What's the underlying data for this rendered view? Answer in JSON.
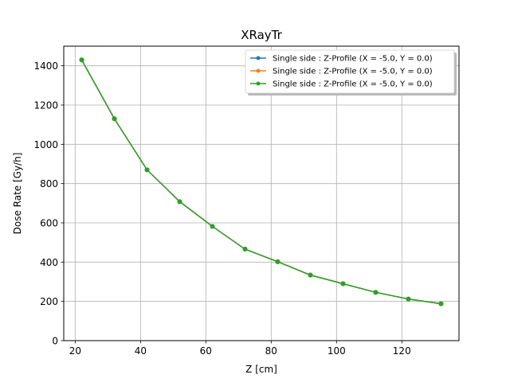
{
  "chart_data": {
    "type": "line",
    "title": "XRayTr",
    "xlabel": "Z [cm]",
    "ylabel": "Dose Rate [Gy/h]",
    "xlim": [
      16.5,
      137.5
    ],
    "ylim": [
      0,
      1500
    ],
    "xticks": [
      20,
      40,
      60,
      80,
      100,
      120
    ],
    "yticks": [
      0,
      200,
      400,
      600,
      800,
      1000,
      1200,
      1400
    ],
    "grid": true,
    "legend_position": "top-right",
    "x": [
      22,
      32,
      42,
      52,
      62,
      72,
      82,
      92,
      102,
      112,
      122,
      132
    ],
    "series": [
      {
        "name": "Single side : Z-Profile (X = -5.0, Y = 0.0)",
        "color": "#1f77b4",
        "values": [
          1430,
          1130,
          870,
          708,
          582,
          466,
          402,
          334,
          290,
          246,
          212,
          188
        ]
      },
      {
        "name": "Single side : Z-Profile (X = -5.0, Y = 0.0)",
        "color": "#ff7f0e",
        "values": [
          1430,
          1130,
          870,
          708,
          582,
          466,
          402,
          334,
          290,
          246,
          212,
          188
        ]
      },
      {
        "name": "Single side : Z-Profile (X = -5.0, Y = 0.0)",
        "color": "#2ca02c",
        "values": [
          1430,
          1130,
          870,
          708,
          582,
          466,
          402,
          334,
          290,
          246,
          212,
          188
        ]
      }
    ]
  }
}
